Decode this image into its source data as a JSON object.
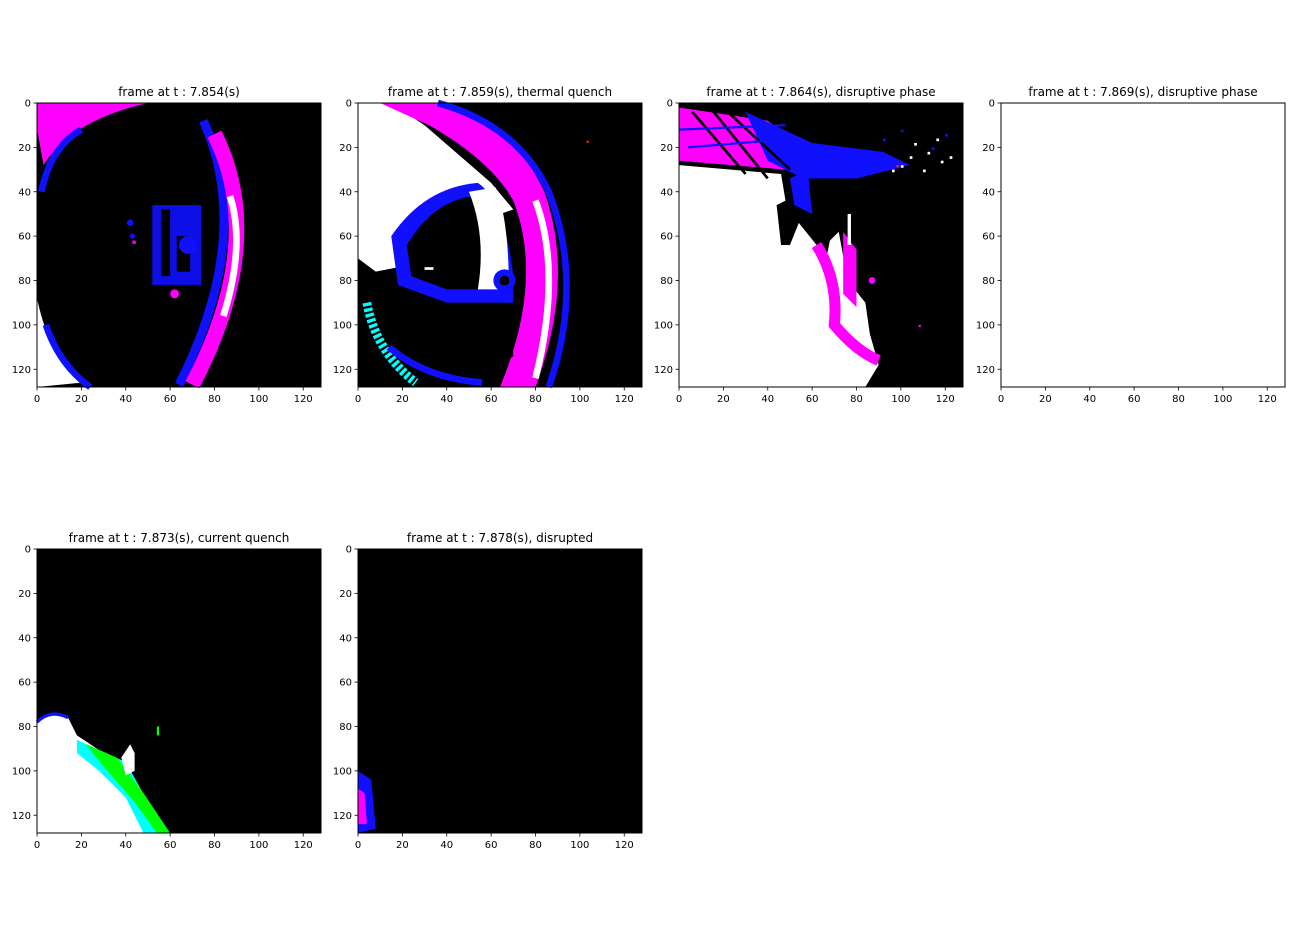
{
  "figure": {
    "panels": [
      {
        "title": "frame at t : 7.854(s)",
        "content": "ring"
      },
      {
        "title": "frame at t : 7.859(s), thermal quench",
        "content": "thermal"
      },
      {
        "title": "frame at t : 7.864(s), disruptive phase",
        "content": "disruptive"
      },
      {
        "title": "frame at t : 7.869(s), disruptive phase",
        "content": "blank"
      },
      {
        "title": "frame at t : 7.873(s), current quench",
        "content": "cq"
      },
      {
        "title": "frame at t : 7.878(s), disrupted",
        "content": "disrupted"
      }
    ]
  },
  "chart_data": [
    {
      "type": "heatmap",
      "title": "frame at t : 7.854(s)",
      "x_range": [
        0,
        127
      ],
      "y_range": [
        0,
        127
      ],
      "y_inverted": true,
      "xticks": [
        0,
        20,
        40,
        60,
        80,
        100,
        120
      ],
      "yticks": [
        0,
        20,
        40,
        60,
        80,
        100,
        120
      ]
    },
    {
      "type": "heatmap",
      "title": "frame at t : 7.859(s), thermal quench",
      "x_range": [
        0,
        127
      ],
      "y_range": [
        0,
        127
      ],
      "y_inverted": true,
      "xticks": [
        0,
        20,
        40,
        60,
        80,
        100,
        120
      ],
      "yticks": [
        0,
        20,
        40,
        60,
        80,
        100,
        120
      ]
    },
    {
      "type": "heatmap",
      "title": "frame at t : 7.864(s), disruptive phase",
      "x_range": [
        0,
        127
      ],
      "y_range": [
        0,
        127
      ],
      "y_inverted": true,
      "xticks": [
        0,
        20,
        40,
        60,
        80,
        100,
        120
      ],
      "yticks": [
        0,
        20,
        40,
        60,
        80,
        100,
        120
      ]
    },
    {
      "type": "heatmap",
      "title": "frame at t : 7.869(s), disruptive phase",
      "x_range": [
        0,
        127
      ],
      "y_range": [
        0,
        127
      ],
      "y_inverted": true,
      "xticks": [
        0,
        20,
        40,
        60,
        80,
        100,
        120
      ],
      "yticks": [
        0,
        20,
        40,
        60,
        80,
        100,
        120
      ]
    },
    {
      "type": "heatmap",
      "title": "frame at t : 7.873(s), current quench",
      "x_range": [
        0,
        127
      ],
      "y_range": [
        0,
        127
      ],
      "y_inverted": true,
      "xticks": [
        0,
        20,
        40,
        60,
        80,
        100,
        120
      ],
      "yticks": [
        0,
        20,
        40,
        60,
        80,
        100,
        120
      ]
    },
    {
      "type": "heatmap",
      "title": "frame at t : 7.878(s), disrupted",
      "x_range": [
        0,
        127
      ],
      "y_range": [
        0,
        127
      ],
      "y_inverted": true,
      "xticks": [
        0,
        20,
        40,
        60,
        80,
        100,
        120
      ],
      "yticks": [
        0,
        20,
        40,
        60,
        80,
        100,
        120
      ]
    }
  ],
  "colors": {
    "background": "#000000",
    "blue": "#1010ff",
    "magenta": "#ff00ff",
    "white": "#ffffff",
    "cyan": "#00ffff",
    "green": "#00ff00",
    "red": "#ff2020"
  }
}
